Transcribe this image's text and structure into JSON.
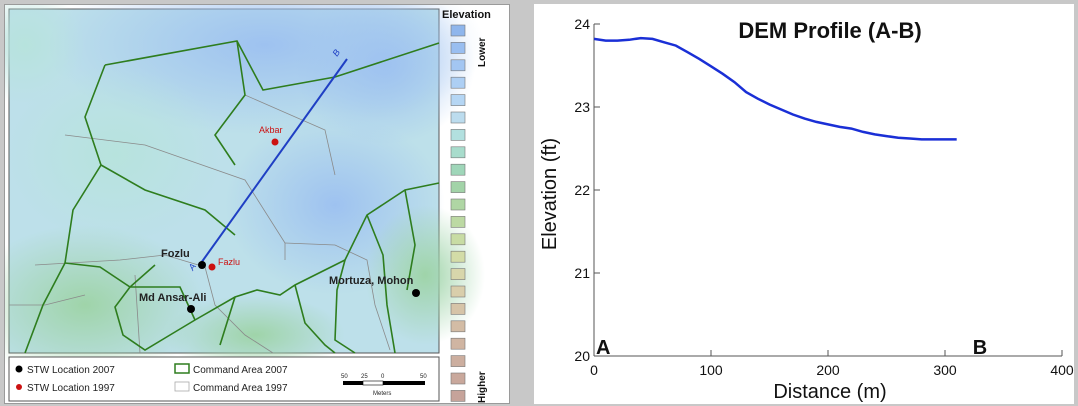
{
  "map": {
    "elevation_title": "Elevation",
    "lower_label": "Lower",
    "higher_label": "Higher",
    "legend_ramp_colors": [
      "#8fb6ec",
      "#99bef0",
      "#a3c6f2",
      "#adcff4",
      "#b5d6f4",
      "#bcdcee",
      "#b2e0df",
      "#a8dccc",
      "#9fd6b9",
      "#a2d3a8",
      "#afd6a4",
      "#bcd9a3",
      "#c8dca4",
      "#d3dca7",
      "#d8d6ab",
      "#d9ceab",
      "#d6c4a8",
      "#d3bca5",
      "#d0b5a2",
      "#ccae9f",
      "#c9a89c",
      "#c6a39a"
    ],
    "profile_line": {
      "start_label": "A",
      "end_label": "B",
      "color": "#1f3fc4"
    },
    "stw_2007": [
      {
        "name": "Fozlu"
      },
      {
        "name": "Md Ansar-Ali"
      },
      {
        "name": "Mortuza, Mohon"
      }
    ],
    "stw_1997": [
      {
        "name": "Akbar"
      },
      {
        "name": "Fazlu"
      }
    ],
    "legend": {
      "stw2007": "STW Location 2007",
      "stw1997": "STW Location 1997",
      "ca2007": "Command Area 2007",
      "ca1997": "Command Area 1997"
    },
    "scale_bar": {
      "ticks": [
        "50",
        "25",
        "0",
        "50"
      ],
      "unit": "Meters"
    },
    "colors": {
      "command_2007": "#2e7d1e",
      "command_1997": "#8a8a8a",
      "stw_2007": "#000000",
      "stw_1997": "#cc1111"
    }
  },
  "chart_data": {
    "type": "line",
    "title": "DEM Profile (A-B)",
    "xlabel": "Distance (m)",
    "ylabel": "Elevation (ft)",
    "xlim": [
      0,
      400
    ],
    "ylim": [
      20,
      24
    ],
    "xticks": [
      0,
      100,
      200,
      300,
      400
    ],
    "yticks": [
      20,
      21,
      22,
      23,
      24
    ],
    "start_label": "A",
    "end_label": "B",
    "series": [
      {
        "color": "#1a2fd6",
        "x": [
          0,
          10,
          20,
          30,
          40,
          50,
          60,
          70,
          80,
          90,
          100,
          110,
          120,
          130,
          140,
          150,
          160,
          170,
          180,
          190,
          200,
          210,
          220,
          230,
          240,
          250,
          260,
          270,
          280,
          290,
          300,
          310
        ],
        "y": [
          23.82,
          23.8,
          23.8,
          23.81,
          23.83,
          23.82,
          23.78,
          23.74,
          23.66,
          23.58,
          23.49,
          23.4,
          23.3,
          23.18,
          23.1,
          23.03,
          22.97,
          22.91,
          22.86,
          22.82,
          22.79,
          22.76,
          22.74,
          22.7,
          22.67,
          22.65,
          22.63,
          22.62,
          22.61,
          22.61,
          22.61,
          22.61
        ]
      }
    ]
  }
}
